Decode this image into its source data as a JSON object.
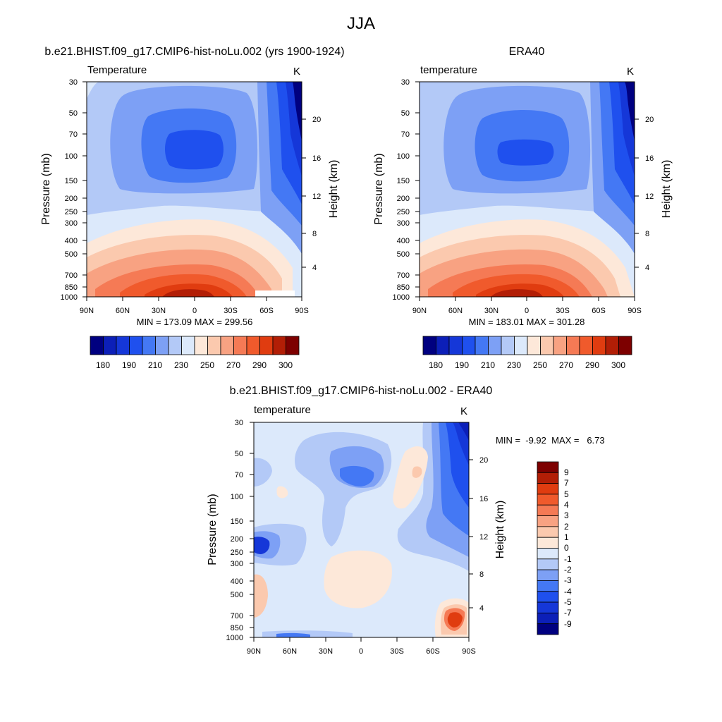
{
  "title": "JJA",
  "colors": {
    "abs_levels": [
      "#000080",
      "#0c1fb8",
      "#1537d8",
      "#1f50ee",
      "#4478f4",
      "#7da0f5",
      "#b3c9f7",
      "#dce9fb",
      "#fde8d9",
      "#fbc9ae",
      "#f8a282",
      "#f57a55",
      "#f05a2c",
      "#e03c10",
      "#b21e06",
      "#7d0000"
    ],
    "diff_levels": [
      "#000080",
      "#0c1fb8",
      "#1537d8",
      "#1f50ee",
      "#4478f4",
      "#7da0f5",
      "#b3c9f7",
      "#dce9fb",
      "#fde8d9",
      "#fbc9ae",
      "#f8a282",
      "#f57a55",
      "#f05a2c",
      "#e03c10",
      "#b21e06",
      "#7d0000"
    ]
  },
  "chart_data": [
    {
      "type": "heatmap",
      "title": "b.e21.BHIST.f09_g17.CMIP6-hist-noLu.002 (yrs 1900-1924)",
      "subtitle_left": "Temperature",
      "subtitle_right": "K",
      "ylabel": "Pressure (mb)",
      "ylabel_right": "Height (km)",
      "x_ticks": [
        "90N",
        "60N",
        "30N",
        "0",
        "30S",
        "60S",
        "90S"
      ],
      "y_ticks": [
        "30",
        "50",
        "70",
        "100",
        "150",
        "200",
        "250",
        "300",
        "400",
        "500",
        "700",
        "850",
        "1000"
      ],
      "y_right_ticks": [
        "20",
        "16",
        "12",
        "8",
        "4"
      ],
      "stats": "MIN = 173.09  MAX = 299.56",
      "colorbar_labels": [
        "180",
        "190",
        "210",
        "230",
        "250",
        "270",
        "290",
        "300"
      ]
    },
    {
      "type": "heatmap",
      "title": "ERA40",
      "subtitle_left": "temperature",
      "subtitle_right": "K",
      "ylabel": "Pressure (mb)",
      "ylabel_right": "Height (km)",
      "x_ticks": [
        "90N",
        "60N",
        "30N",
        "0",
        "30S",
        "60S",
        "90S"
      ],
      "y_ticks": [
        "30",
        "50",
        "70",
        "100",
        "150",
        "200",
        "250",
        "300",
        "400",
        "500",
        "700",
        "850",
        "1000"
      ],
      "y_right_ticks": [
        "20",
        "16",
        "12",
        "8",
        "4"
      ],
      "stats": "MIN = 183.01  MAX = 301.28",
      "colorbar_labels": [
        "180",
        "190",
        "210",
        "230",
        "250",
        "270",
        "290",
        "300"
      ]
    },
    {
      "type": "heatmap",
      "title": "b.e21.BHIST.f09_g17.CMIP6-hist-noLu.002 - ERA40",
      "subtitle_left": "temperature",
      "subtitle_right": "K",
      "ylabel": "Pressure (mb)",
      "ylabel_right": "Height (km)",
      "x_ticks": [
        "90N",
        "60N",
        "30N",
        "0",
        "30S",
        "60S",
        "90S"
      ],
      "y_ticks": [
        "30",
        "50",
        "70",
        "100",
        "150",
        "200",
        "250",
        "300",
        "400",
        "500",
        "700",
        "850",
        "1000"
      ],
      "y_right_ticks": [
        "20",
        "16",
        "12",
        "8",
        "4"
      ],
      "stats": "MIN =  -9.92  MAX =   6.73",
      "colorbar_labels": [
        "9",
        "7",
        "5",
        "4",
        "3",
        "2",
        "1",
        "0",
        "-1",
        "-2",
        "-3",
        "-4",
        "-5",
        "-7",
        "-9"
      ]
    }
  ]
}
